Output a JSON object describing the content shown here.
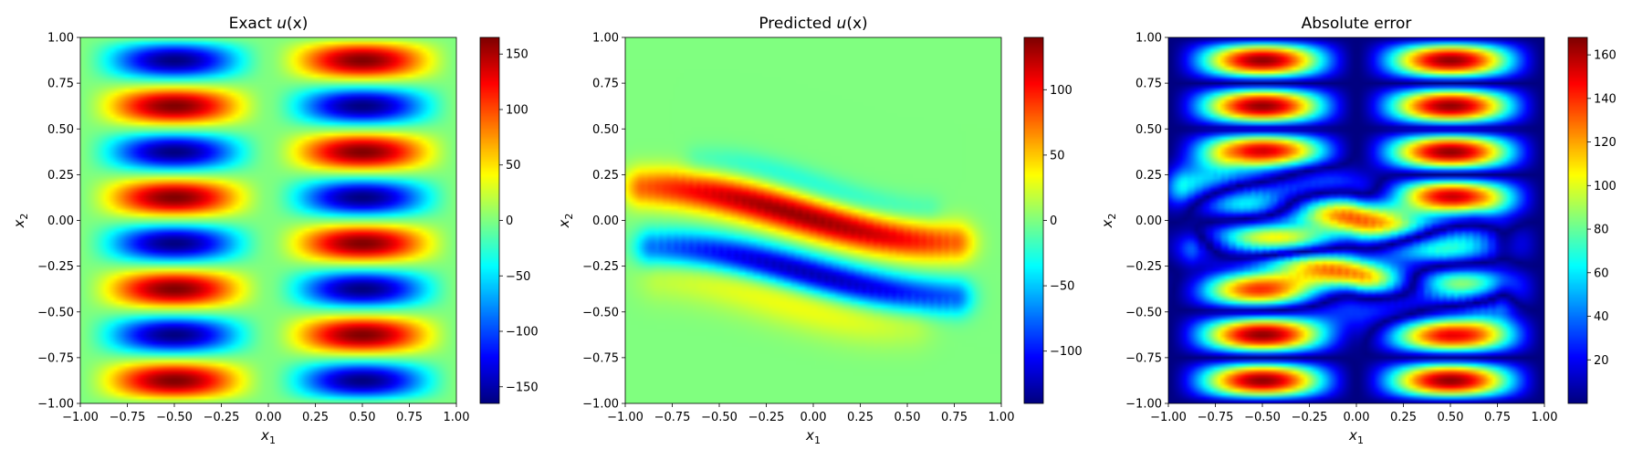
{
  "figure": {
    "background": "#ffffff",
    "colormap": "jet"
  },
  "chart_data": [
    {
      "type": "heatmap",
      "title_prefix": "Exact ",
      "title_var": "u",
      "title_suffix": "(x)",
      "xlabel": "x",
      "xlabel_sub": "1",
      "ylabel": "x",
      "ylabel_sub": "2",
      "xlim": [
        -1.0,
        1.0
      ],
      "ylim": [
        -1.0,
        1.0
      ],
      "xticks": [
        "−1.00",
        "−0.75",
        "−0.50",
        "−0.25",
        "0.00",
        "0.25",
        "0.50",
        "0.75",
        "1.00"
      ],
      "yticks": [
        "−1.00",
        "−0.75",
        "−0.50",
        "−0.25",
        "0.00",
        "0.25",
        "0.50",
        "0.75",
        "1.00"
      ],
      "field": "u(x1,x2) = 165·sin(π·x1)·sin(2π·x2)·... (blob array 2 × 8)",
      "blob_centers_x": [
        -0.5,
        0.5
      ],
      "blob_centers_y": [
        -0.875,
        -0.625,
        -0.375,
        -0.125,
        0.125,
        0.375,
        0.625,
        0.875
      ],
      "peak_value": 165,
      "colorbar": {
        "vmin": -165,
        "vmax": 165,
        "ticks": [
          -150,
          -100,
          -50,
          0,
          50,
          100,
          150
        ],
        "tick_labels": [
          "−150",
          "−100",
          "−50",
          "0",
          "50",
          "100",
          "150"
        ]
      }
    },
    {
      "type": "heatmap",
      "title_prefix": "Predicted ",
      "title_var": "u",
      "title_suffix": "(x)",
      "xlabel": "x",
      "xlabel_sub": "1",
      "ylabel": "x",
      "ylabel_sub": "2",
      "xlim": [
        -1.0,
        1.0
      ],
      "ylim": [
        -1.0,
        1.0
      ],
      "xticks": [
        "−1.00",
        "−0.75",
        "−0.50",
        "−0.25",
        "0.00",
        "0.25",
        "0.50",
        "0.75",
        "1.00"
      ],
      "yticks": [
        "−1.00",
        "−0.75",
        "−0.50",
        "−0.25",
        "0.00",
        "0.25",
        "0.50",
        "0.75",
        "1.00"
      ],
      "features": [
        {
          "shape": "positive diagonal band",
          "from": [
            -0.9,
            0.18
          ],
          "to": [
            0.75,
            -0.12
          ],
          "peak": 135
        },
        {
          "shape": "negative diagonal band",
          "from": [
            -0.85,
            -0.15
          ],
          "to": [
            0.75,
            -0.42
          ],
          "peak": -135
        },
        {
          "shape": "weak negative band above",
          "from": [
            -0.6,
            0.32
          ],
          "to": [
            0.6,
            0.05
          ],
          "peak": -30
        },
        {
          "shape": "weak positive band below",
          "from": [
            -0.8,
            -0.3
          ],
          "to": [
            0.5,
            -0.55
          ],
          "peak": 35
        }
      ],
      "colorbar": {
        "vmin": -140,
        "vmax": 140,
        "ticks": [
          -100,
          -50,
          0,
          50,
          100
        ],
        "tick_labels": [
          "−100",
          "−50",
          "0",
          "50",
          "100"
        ]
      }
    },
    {
      "type": "heatmap",
      "title": "Absolute error",
      "xlabel": "x",
      "xlabel_sub": "1",
      "ylabel": "x",
      "ylabel_sub": "2",
      "xlim": [
        -1.0,
        1.0
      ],
      "ylim": [
        -1.0,
        1.0
      ],
      "xticks": [
        "−1.00",
        "−0.75",
        "−0.50",
        "−0.25",
        "0.00",
        "0.25",
        "0.50",
        "0.75",
        "1.00"
      ],
      "yticks": [
        "−1.00",
        "−0.75",
        "−0.50",
        "−0.25",
        "0.00",
        "0.25",
        "0.50",
        "0.75",
        "1.00"
      ],
      "field": "|exact − predicted|",
      "colorbar": {
        "vmin": 0,
        "vmax": 168,
        "ticks": [
          20,
          40,
          60,
          80,
          100,
          120,
          140,
          160
        ],
        "tick_labels": [
          "20",
          "40",
          "60",
          "80",
          "100",
          "120",
          "140",
          "160"
        ]
      }
    }
  ]
}
